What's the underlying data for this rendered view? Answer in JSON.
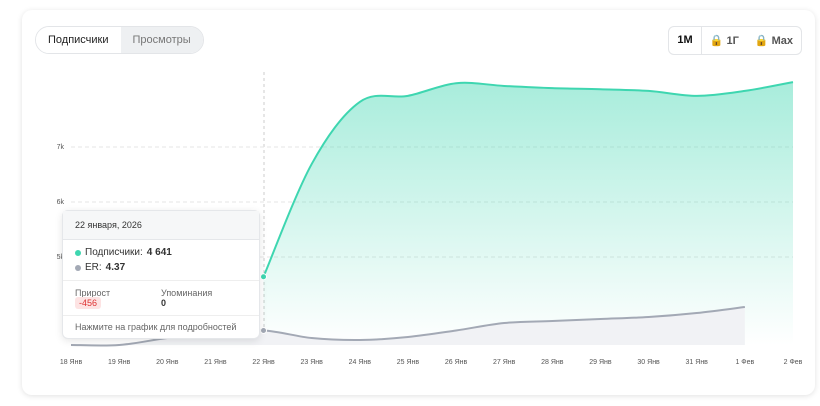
{
  "tabs": [
    "Подписчики",
    "Просмотры"
  ],
  "periods": [
    "1М",
    "1Г",
    "Max"
  ],
  "tooltip": {
    "date": "22 января, 2026",
    "subs_label": "Подписчики:",
    "subs_value": "4 641",
    "er_label": "ER:",
    "er_value": "4.37",
    "growth_label": "Прирост",
    "growth_value": "-456",
    "mentions_label": "Упоминания",
    "mentions_value": "0",
    "hint": "Нажмите на график для подробностей"
  },
  "chart_data": {
    "type": "line",
    "categories": [
      "18 Янв",
      "19 Янв",
      "20 Янв",
      "21 Янв",
      "22 Янв",
      "23 Янв",
      "24 Янв",
      "25 Янв",
      "26 Янв",
      "27 Янв",
      "28 Янв",
      "29 Янв",
      "30 Янв",
      "31 Янв",
      "1 Фев",
      "2 Фев"
    ],
    "series": [
      {
        "name": "Подписчики",
        "color": "#3ed6b0",
        "values": [
          null,
          null,
          null,
          null,
          4641,
          6690,
          7820,
          7930,
          8160,
          8110,
          8070,
          8050,
          8020,
          7930,
          8020,
          8180
        ]
      },
      {
        "name": "ER",
        "color": "#a3a9b5",
        "axis": "y2",
        "values": [
          3.5,
          3.5,
          3.92,
          4.22,
          4.37,
          3.92,
          3.8,
          3.98,
          4.37,
          4.82,
          4.94,
          5.06,
          5.18,
          5.42,
          5.78,
          null
        ]
      }
    ],
    "ylim": [
      3400,
      8400
    ],
    "yticks": [
      {
        "value": 5000,
        "label": "5k"
      },
      {
        "value": 6000,
        "label": "6k"
      },
      {
        "value": 7000,
        "label": "7k"
      }
    ],
    "y2lim": [
      3.5,
      20
    ],
    "grid": true
  }
}
